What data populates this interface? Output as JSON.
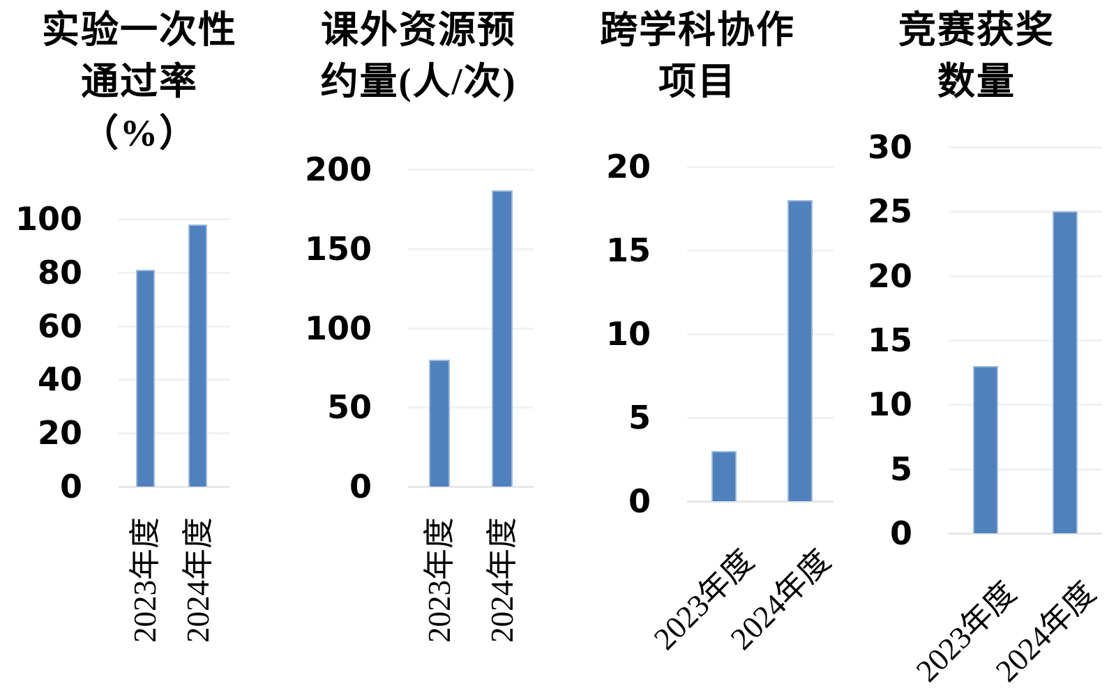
{
  "figure": {
    "background": "#ffffff",
    "bar_color": "#4F81BD",
    "bar_edge_color": "#9DBBDC",
    "gridline_color": "#f1f1f1",
    "text_color": "#000000"
  },
  "chart_data": [
    {
      "type": "bar",
      "title": "实验一次性通过率（%）",
      "title_lines": [
        "实验一次性",
        "通过率",
        "（%）"
      ],
      "categories": [
        "2023年度",
        "2024年度"
      ],
      "values": [
        81,
        98
      ],
      "xlabel": "",
      "ylabel": "",
      "ylim": [
        0,
        100
      ],
      "yticks": [
        0,
        20,
        40,
        60,
        80,
        100
      ],
      "grid": true,
      "legend": false,
      "xlabel_rotation": -90
    },
    {
      "type": "bar",
      "title": "课外资源预约量(人/次)",
      "title_lines": [
        "课外资源预",
        "约量(人/次)"
      ],
      "categories": [
        "2023年度",
        "2024年度"
      ],
      "values": [
        80,
        187
      ],
      "xlabel": "",
      "ylabel": "",
      "ylim": [
        0,
        200
      ],
      "yticks": [
        0,
        50,
        100,
        150,
        200
      ],
      "grid": true,
      "legend": false,
      "xlabel_rotation": -90
    },
    {
      "type": "bar",
      "title": "跨学科协作项目",
      "title_lines": [
        "跨学科协作",
        "项目"
      ],
      "categories": [
        "2023年度",
        "2024年度"
      ],
      "values": [
        3,
        18
      ],
      "xlabel": "",
      "ylabel": "",
      "ylim": [
        0,
        20
      ],
      "yticks": [
        0,
        5,
        10,
        15,
        20
      ],
      "grid": true,
      "legend": false,
      "xlabel_rotation": -45
    },
    {
      "type": "bar",
      "title": "竞赛获奖数量",
      "title_lines": [
        "竞赛获奖",
        "数量"
      ],
      "categories": [
        "2023年度",
        "2024年度"
      ],
      "values": [
        13,
        25
      ],
      "xlabel": "",
      "ylabel": "",
      "ylim": [
        0,
        30
      ],
      "yticks": [
        0,
        5,
        10,
        15,
        20,
        25,
        30
      ],
      "grid": true,
      "legend": false,
      "xlabel_rotation": -45
    }
  ]
}
